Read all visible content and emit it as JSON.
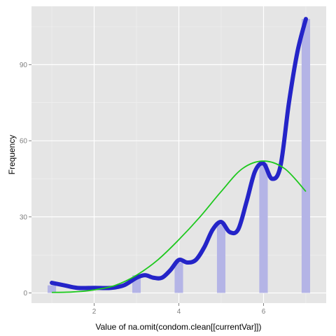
{
  "chart_data": {
    "type": "bar",
    "xlabel": "Value of na.omit(condom.clean[[currentVar]])",
    "ylabel": "Frequency",
    "xlim": [
      0.52,
      7.48
    ],
    "ylim": [
      -4,
      113
    ],
    "x_ticks": [
      2,
      4,
      6
    ],
    "y_ticks": [
      0,
      30,
      60,
      90
    ],
    "x_tick_labels": [
      "2",
      "4",
      "6"
    ],
    "y_tick_labels": [
      "0",
      "30",
      "60",
      "90"
    ],
    "grid": true,
    "legend": "none",
    "colors": {
      "panel": "#e5e5e5",
      "grid_major": "#ffffff",
      "grid_minor": "#f2f2f2",
      "bars": "#b4b4e6",
      "density": "#2424c8",
      "normal": "#1ec81e"
    },
    "series": [
      {
        "type": "bar",
        "x": [
          1,
          3,
          4,
          5,
          6,
          7
        ],
        "values": [
          3,
          7,
          12,
          27,
          51,
          108
        ]
      },
      {
        "type": "line",
        "x": [
          1.0,
          1.3,
          1.6,
          2.0,
          2.4,
          2.7,
          3.0,
          3.2,
          3.4,
          3.6,
          3.8,
          4.0,
          4.2,
          4.4,
          4.6,
          4.8,
          5.0,
          5.2,
          5.4,
          5.6,
          5.8,
          6.0,
          6.2,
          6.4,
          6.6,
          6.8,
          7.0
        ],
        "values": [
          4,
          3,
          2,
          2,
          2,
          3,
          6,
          7,
          6,
          6,
          9,
          13,
          12,
          13,
          18,
          25,
          28,
          24,
          25,
          36,
          48,
          51,
          45,
          50,
          75,
          95,
          108
        ]
      },
      {
        "type": "line",
        "x": [
          1.0,
          1.5,
          2.0,
          2.5,
          3.0,
          3.5,
          4.0,
          4.5,
          5.0,
          5.5,
          6.0,
          6.5,
          7.0
        ],
        "values": [
          0.2,
          0.4,
          1.2,
          3,
          7,
          13,
          21,
          30,
          40,
          49,
          52,
          49,
          40
        ]
      }
    ]
  }
}
